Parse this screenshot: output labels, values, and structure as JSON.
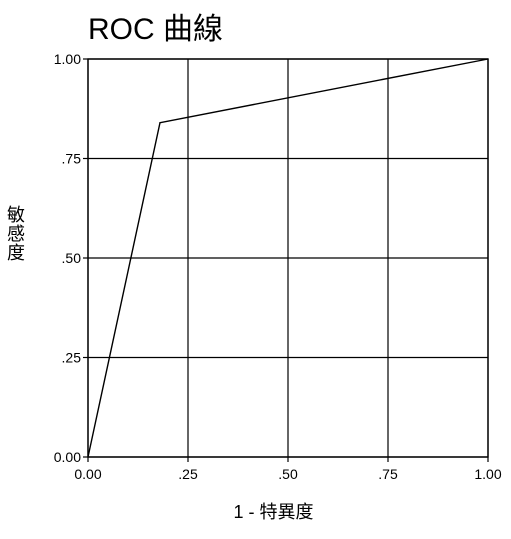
{
  "chart_data": {
    "type": "line",
    "title": "ROC 曲線",
    "xlabel": "1 - 特異度",
    "ylabel": "敏感度",
    "xlim": [
      0,
      1
    ],
    "ylim": [
      0,
      1
    ],
    "x_ticks": [
      0,
      0.25,
      0.5,
      0.75,
      1
    ],
    "x_tick_labels": [
      "0.00",
      ".25",
      ".50",
      ".75",
      "1.00"
    ],
    "y_ticks": [
      0,
      0.25,
      0.5,
      0.75,
      1
    ],
    "y_tick_labels": [
      "0.00",
      ".25",
      ".50",
      ".75",
      "1.00"
    ],
    "grid": true,
    "legend": "none",
    "series": [
      {
        "x": [
          0,
          0.18,
          1
        ],
        "y": [
          0,
          0.84,
          1
        ],
        "color": "#000000"
      }
    ]
  }
}
